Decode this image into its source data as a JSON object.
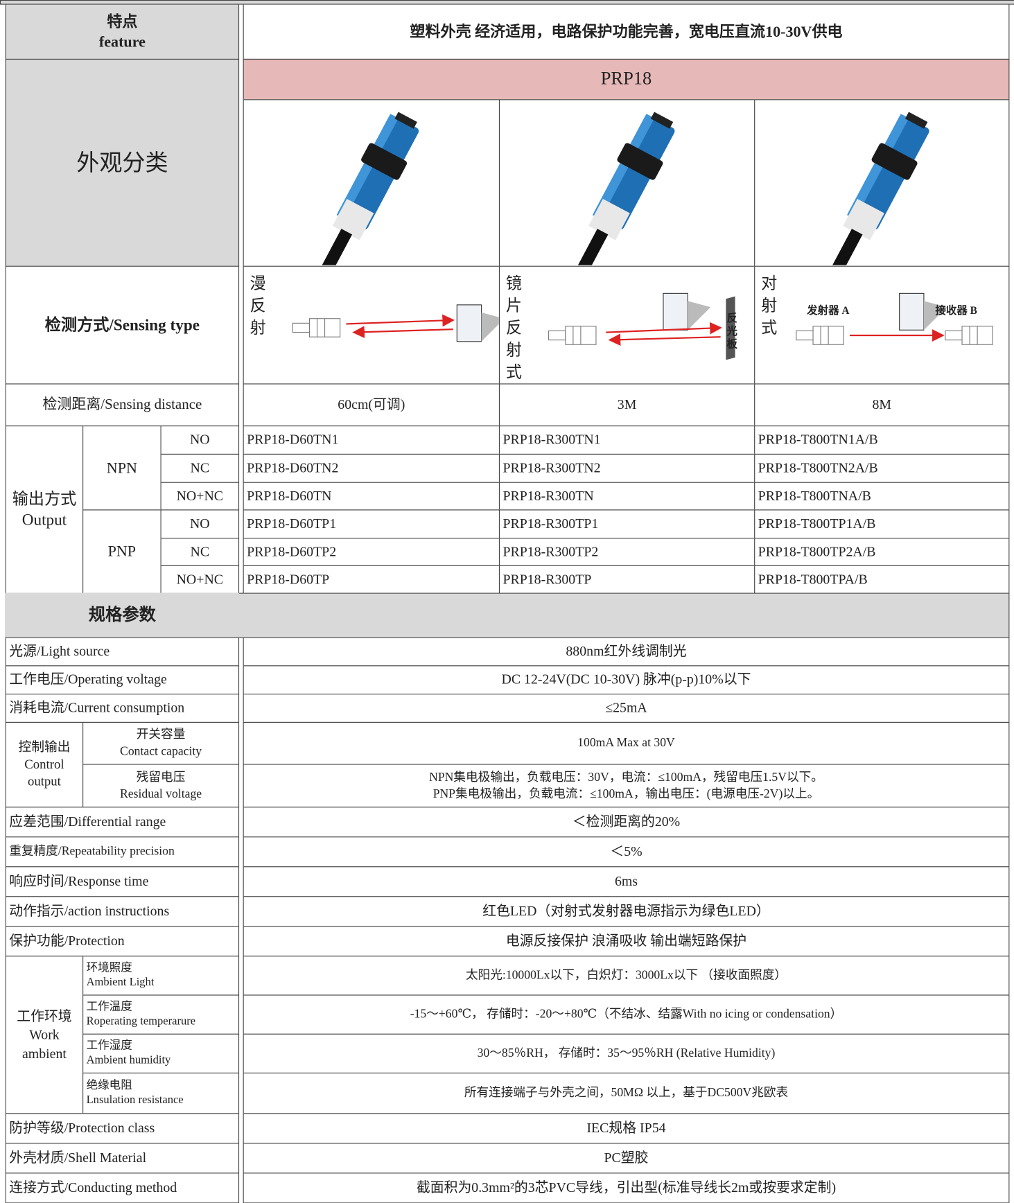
{
  "feature": {
    "label": "特点\nfeature",
    "text": "塑料外壳 经济适用，电路保护功能完善，宽电压直流10-30V供电"
  },
  "appearance": {
    "label": "外观分类",
    "model": "PRP18"
  },
  "sensing_type": {
    "label": "检测方式/Sensing type",
    "types": [
      "漫反射",
      "镜片反射式",
      "对射式"
    ],
    "reflector": "反光板",
    "emitter": "发射器 A",
    "receiver": "接收器 B"
  },
  "sensing_distance": {
    "label": "检测距离/Sensing distance",
    "values": [
      "60cm(可调)",
      "3M",
      "8M"
    ]
  },
  "output": {
    "label": "输出方式\nOutput",
    "groups": [
      {
        "type": "NPN",
        "rows": [
          {
            "mode": "NO",
            "models": [
              "PRP18-D60TN1",
              "PRP18-R300TN1",
              "PRP18-T800TN1A/B"
            ]
          },
          {
            "mode": "NC",
            "models": [
              "PRP18-D60TN2",
              "PRP18-R300TN2",
              "PRP18-T800TN2A/B"
            ]
          },
          {
            "mode": "NO+NC",
            "models": [
              "PRP18-D60TN",
              "PRP18-R300TN",
              "PRP18-T800TNA/B"
            ]
          }
        ]
      },
      {
        "type": "PNP",
        "rows": [
          {
            "mode": "NO",
            "models": [
              "PRP18-D60TP1",
              "PRP18-R300TP1",
              "PRP18-T800TP1A/B"
            ]
          },
          {
            "mode": "NC",
            "models": [
              "PRP18-D60TP2",
              "PRP18-R300TP2",
              "PRP18-T800TP2A/B"
            ]
          },
          {
            "mode": "NO+NC",
            "models": [
              "PRP18-D60TP",
              "PRP18-R300TP",
              "PRP18-T800TPA/B"
            ]
          }
        ]
      }
    ]
  },
  "specs": {
    "title": "规格参数",
    "rows": [
      {
        "label": "光源/Light source",
        "value": "880nm红外线调制光"
      },
      {
        "label": "工作电压/Operating voltage",
        "value": "DC 12-24V(DC 10-30V) 脉冲(p-p)10%以下"
      },
      {
        "label": "消耗电流/Current consumption",
        "value": "≤25mA"
      },
      {
        "label": "控制输出\nControl\noutput",
        "items": [
          {
            "label": "开关容量\nContact capacity",
            "value": "100mA Max at 30V"
          },
          {
            "label": "残留电压\nResidual voltage",
            "value": "NPN集电极输出，负载电压：30V，电流：≤100mA，残留电压1.5V以下。\nPNP集电极输出，负载电流：≤100mA，输出电压：(电源电压-2V)以上。"
          }
        ]
      },
      {
        "label": "应差范围/Differential range",
        "value": "＜检测距离的20%"
      },
      {
        "label": "重复精度/Repeatability precision",
        "value": "＜5%"
      },
      {
        "label": "响应时间/Response time",
        "value": "6ms"
      },
      {
        "label": "动作指示/action instructions",
        "value": "红色LED（对射式发射器电源指示为绿色LED）"
      },
      {
        "label": "保护功能/Protection",
        "value": "电源反接保护 浪涌吸收 输出端短路保护"
      },
      {
        "label": "工作环境\nWork\nambient",
        "items": [
          {
            "label": "环境照度\nAmbient Light",
            "value": "太阳光:10000Lx以下，白炽灯：3000Lx以下 （接收面照度）"
          },
          {
            "label": "工作温度\nRoperating temperarure",
            "value": "-15～+60℃， 存储时：-20～+80℃（不结冰、结露With no icing or condensation）"
          },
          {
            "label": "工作湿度\nAmbient humidity",
            "value": "30～85％RH， 存储时：35～95％RH (Relative Humidity)"
          },
          {
            "label": "绝缘电阻\nLnsulation resistance",
            "value": "所有连接端子与外壳之间，50MΩ 以上，基于DC500V兆欧表"
          }
        ]
      },
      {
        "label": "防护等级/Protection class",
        "value": "IEC规格 IP54"
      },
      {
        "label": "外壳材质/Shell Material",
        "value": "PC塑胶"
      },
      {
        "label": "连接方式/Conducting method",
        "value": "截面积为0.3mm²的3芯PVC导线，引出型(标准导线长2m或按要求定制)"
      }
    ]
  }
}
